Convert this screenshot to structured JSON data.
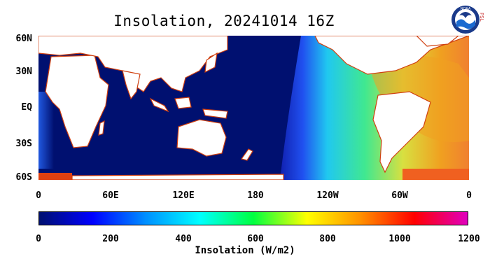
{
  "title": "Insolation, 20241014 16Z",
  "logo": {
    "icon": "noaa-logo-icon",
    "text": "NOAA",
    "side_text": "PSL"
  },
  "map": {
    "type": "global insolation map",
    "lat_labels": [
      "60N",
      "30N",
      "EQ",
      "30S",
      "60S"
    ],
    "lat_values": [
      60,
      30,
      0,
      -30,
      -60
    ],
    "lon_labels": [
      "0",
      "60E",
      "120E",
      "180",
      "120W",
      "60W",
      "0"
    ],
    "lon_values": [
      0,
      60,
      120,
      180,
      240,
      300,
      360
    ],
    "lat_range": [
      -60,
      60
    ],
    "lon_range": [
      0,
      360
    ],
    "colors": {
      "land": "#ffffff",
      "night": "#001070",
      "coast": "#d04010"
    }
  },
  "colorbar": {
    "labels": [
      "0",
      "200",
      "400",
      "600",
      "800",
      "1000",
      "1200"
    ],
    "values": [
      0,
      200,
      400,
      600,
      800,
      1000,
      1200
    ],
    "range": [
      0,
      1200
    ],
    "title": "Insolation (W/m2)",
    "stops": [
      "#00106e",
      "#0000ff",
      "#0090ff",
      "#00ffff",
      "#00ff40",
      "#ffff00",
      "#ff9000",
      "#ff0000",
      "#e000c0"
    ]
  }
}
